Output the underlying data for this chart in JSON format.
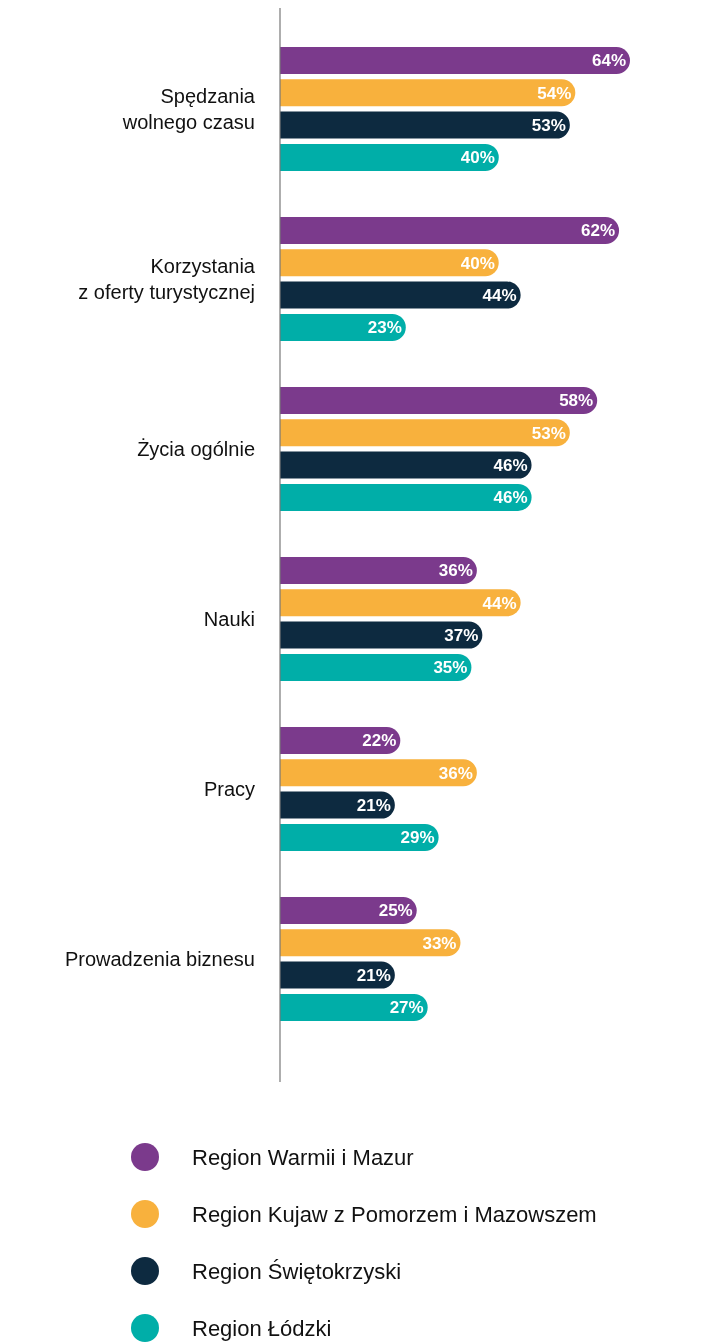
{
  "chart_data": {
    "type": "bar",
    "orientation": "horizontal",
    "categories": [
      "Spędzania wolnego czasu",
      "Korzystania z oferty turystycznej",
      "Życia ogólnie",
      "Nauki",
      "Pracy",
      "Prowadzenia biznesu"
    ],
    "series": [
      {
        "name": "Region Warmii i Mazur",
        "color": "#7b3a8c",
        "values": [
          64,
          62,
          58,
          36,
          22,
          25
        ],
        "value_labels": [
          "64%",
          "62%",
          "58%",
          "36%",
          "22%",
          "25%"
        ]
      },
      {
        "name": "Region Kujaw z Pomorzem i Mazowszem",
        "color": "#f8b13d",
        "values": [
          54,
          40,
          53,
          44,
          36,
          33
        ],
        "value_labels": [
          "54%",
          "40%",
          "53%",
          "44%",
          "36%",
          "33%"
        ]
      },
      {
        "name": "Region Świętokrzyski",
        "color": "#0d2a40",
        "values": [
          53,
          44,
          46,
          37,
          21,
          21
        ],
        "value_labels": [
          "53%",
          "44%",
          "46%",
          "37%",
          "21%",
          "21%"
        ]
      },
      {
        "name": "Region Łódzki",
        "color": "#00aea8",
        "values": [
          40,
          23,
          46,
          35,
          29,
          27
        ],
        "value_labels": [
          "40%",
          "23%",
          "46%",
          "35%",
          "29%",
          "27%"
        ]
      }
    ],
    "legend": "bottom"
  }
}
